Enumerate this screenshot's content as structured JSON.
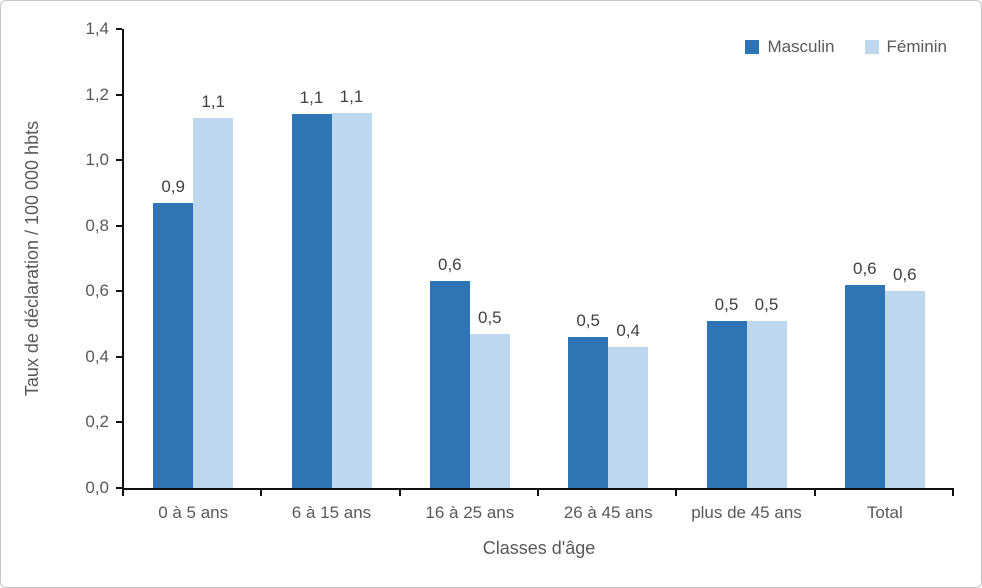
{
  "chart_data": {
    "type": "bar",
    "title": "",
    "categories": [
      "0 à 5 ans",
      "6 à 15 ans",
      "16 à 25 ans",
      "26 à 45 ans",
      "plus de 45 ans",
      "Total"
    ],
    "series": [
      {
        "name": "Masculin",
        "color": "#2E75B6",
        "values": [
          0.87,
          1.14,
          0.63,
          0.46,
          0.51,
          0.62
        ],
        "labels": [
          "0,9",
          "1,1",
          "0,6",
          "0,5",
          "0,5",
          "0,6"
        ]
      },
      {
        "name": "Féminin",
        "color": "#BDD7EE",
        "values": [
          1.13,
          1.145,
          0.47,
          0.43,
          0.51,
          0.6
        ],
        "labels": [
          "1,1",
          "1,1",
          "0,5",
          "0,4",
          "0,5",
          "0,6"
        ]
      }
    ],
    "xlabel": "Classes d'âge",
    "ylabel": "Taux de déclaration / 100 000 hbts",
    "ylim": [
      0,
      1.4
    ],
    "ytick_step": 0.2,
    "ytick_labels": [
      "0,0",
      "0,2",
      "0,4",
      "0,6",
      "0,8",
      "1,0",
      "1,2",
      "1,4"
    ],
    "grid": false,
    "legend_position": "top-right",
    "colors": {
      "axis_line": "#111111",
      "axis_text": "#595959",
      "value_label_text": "#404040",
      "canvas_border": "#c6c6c6",
      "background": "#ffffff"
    }
  }
}
